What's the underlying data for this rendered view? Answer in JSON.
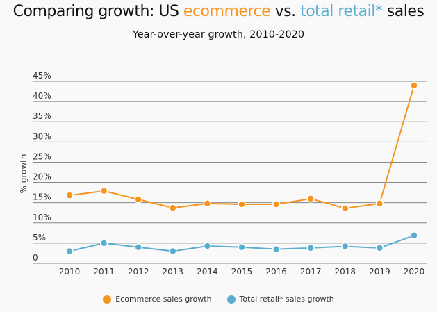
{
  "chart_data": {
    "type": "line",
    "title_parts": [
      "Comparing growth: US ",
      "ecommerce",
      " vs. ",
      "total retail*",
      " sales"
    ],
    "subtitle": "Year-over-year growth, 2010-2020",
    "xlabel": "",
    "ylabel": "% growth",
    "ylim": [
      0,
      45
    ],
    "yticks": [
      "0",
      "5%",
      "10%",
      "15%",
      "20%",
      "25%",
      "30%",
      "35%",
      "40%",
      "45%"
    ],
    "x": [
      "2010",
      "2011",
      "2012",
      "2013",
      "2014",
      "2015",
      "2016",
      "2017",
      "2018",
      "2019",
      "2020"
    ],
    "grid": true,
    "legend_position": "bottom",
    "series": [
      {
        "name": "Ecommerce sales growth",
        "color": "#f7941d",
        "values": [
          16.8,
          17.9,
          15.8,
          13.7,
          14.8,
          14.6,
          14.6,
          16.0,
          13.6,
          14.8,
          44.0
        ]
      },
      {
        "name": "Total retail* sales growth",
        "color": "#5aaed0",
        "values": [
          3.0,
          5.0,
          4.0,
          3.0,
          4.3,
          4.0,
          3.5,
          3.8,
          4.2,
          3.8,
          6.9
        ]
      }
    ]
  }
}
